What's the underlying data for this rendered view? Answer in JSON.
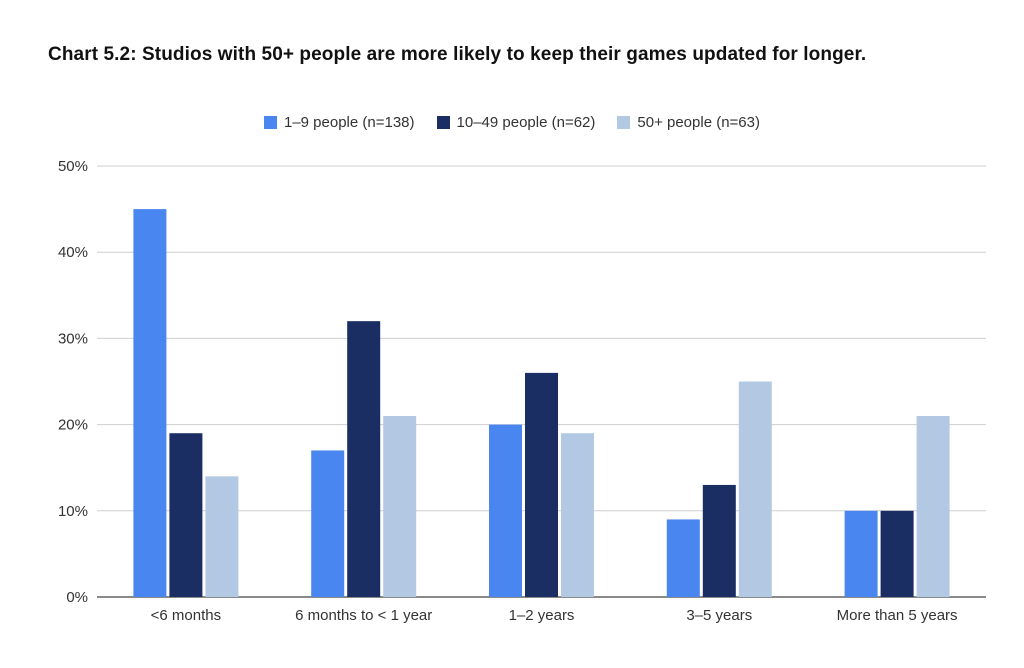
{
  "chart_data": {
    "type": "bar",
    "title": "Chart 5.2: Studios with 50+ people are more likely to keep their games updated for longer.",
    "categories": [
      "<6 months",
      "6 months to < 1 year",
      "1–2 years",
      "3–5 years",
      "More than 5 years"
    ],
    "series": [
      {
        "name": "1–9 people (n=138)",
        "color": "#4a86f0",
        "values": [
          45,
          17,
          20,
          9,
          10
        ]
      },
      {
        "name": "10–49 people (n=62)",
        "color": "#1b2e63",
        "values": [
          19,
          32,
          26,
          13,
          10
        ]
      },
      {
        "name": "50+ people (n=63)",
        "color": "#b3c9e3",
        "values": [
          14,
          21,
          19,
          25,
          21
        ]
      }
    ],
    "y_ticks": [
      "0%",
      "10%",
      "20%",
      "30%",
      "40%",
      "50%"
    ],
    "ylim": [
      0,
      50
    ],
    "xlabel": "",
    "ylabel": "",
    "grid": true,
    "legend_position": "top"
  }
}
